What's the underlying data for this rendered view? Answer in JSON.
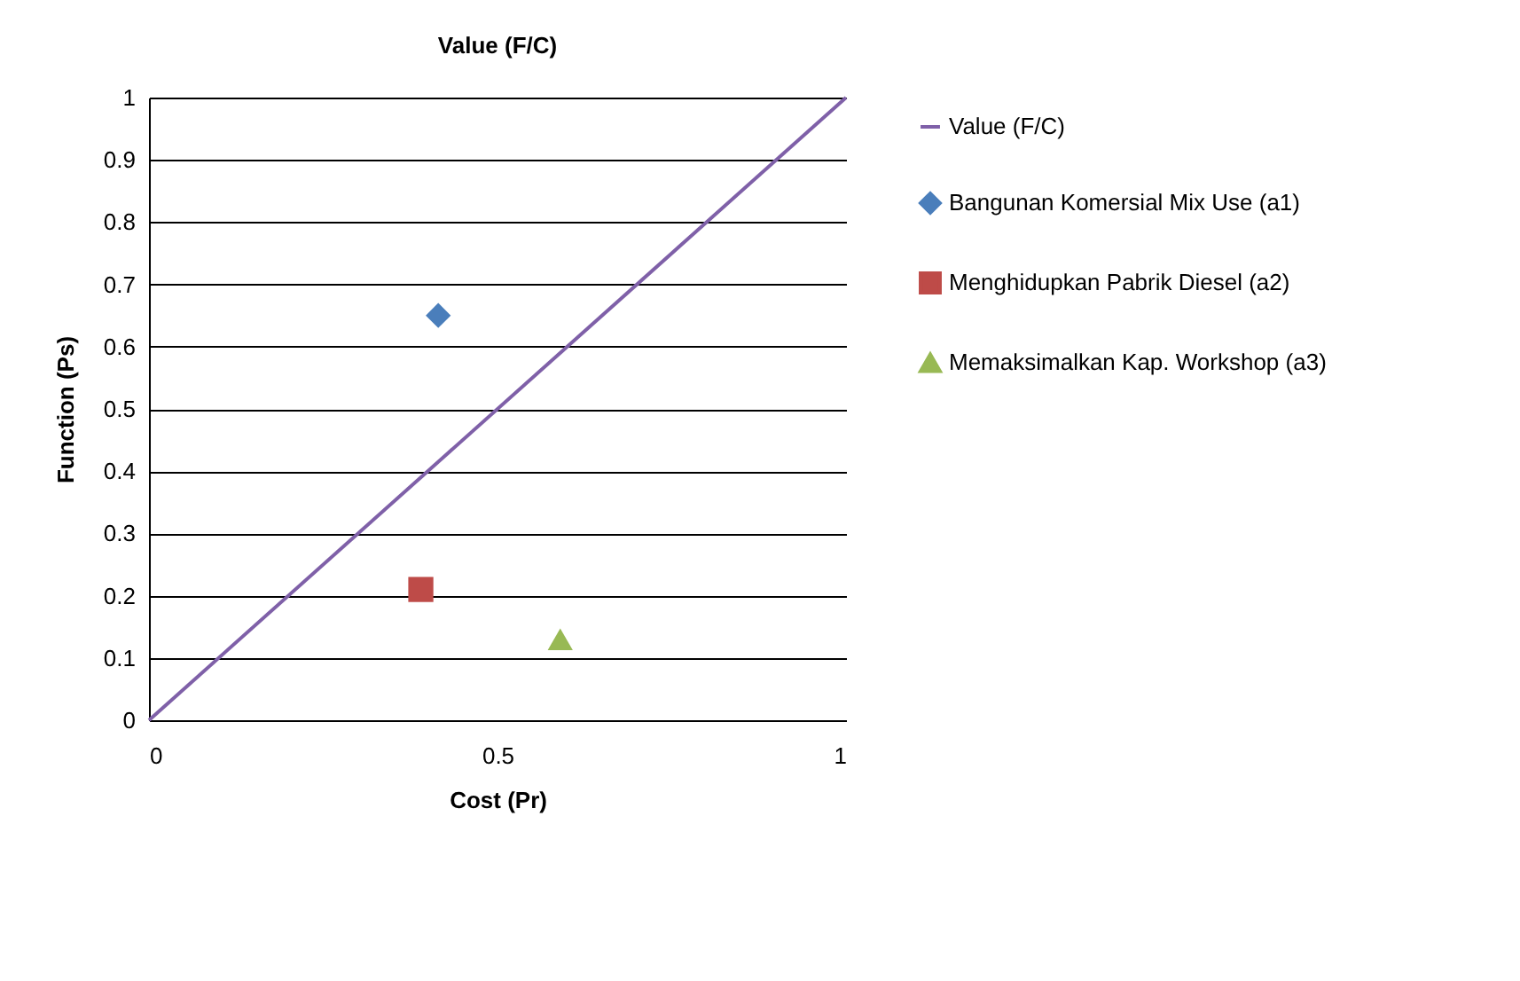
{
  "chart_data": {
    "type": "scatter",
    "title": "Value (F/C)",
    "xlabel": "Cost (Pr)",
    "ylabel": "Function (Ps)",
    "xlim": [
      0,
      1
    ],
    "xticks": [
      0,
      0.5,
      1
    ],
    "ylim": [
      0,
      1
    ],
    "yticks": [
      0,
      0.1,
      0.2,
      0.3,
      0.4,
      0.5,
      0.6,
      0.7,
      0.8,
      0.9,
      1
    ],
    "grid": "y",
    "legend": "right",
    "series": [
      {
        "name": "Value (F/C)",
        "type": "line",
        "color": "#7f60a8",
        "marker": "none",
        "x": [
          0,
          1
        ],
        "values": [
          0,
          1
        ]
      },
      {
        "name": "Bangunan Komersial Mix Use (a1)",
        "color": "#4a7ebb",
        "marker": "diamond",
        "x": [
          0.415
        ],
        "values": [
          0.65
        ]
      },
      {
        "name": "Menghidupkan Pabrik Diesel (a2)",
        "color": "#be4b48",
        "marker": "square",
        "x": [
          0.39
        ],
        "values": [
          0.21
        ]
      },
      {
        "name": "Memaksimalkan Kap. Workshop (a3)",
        "color": "#98b954",
        "marker": "triangle",
        "x": [
          0.59
        ],
        "values": [
          0.13
        ]
      }
    ]
  }
}
